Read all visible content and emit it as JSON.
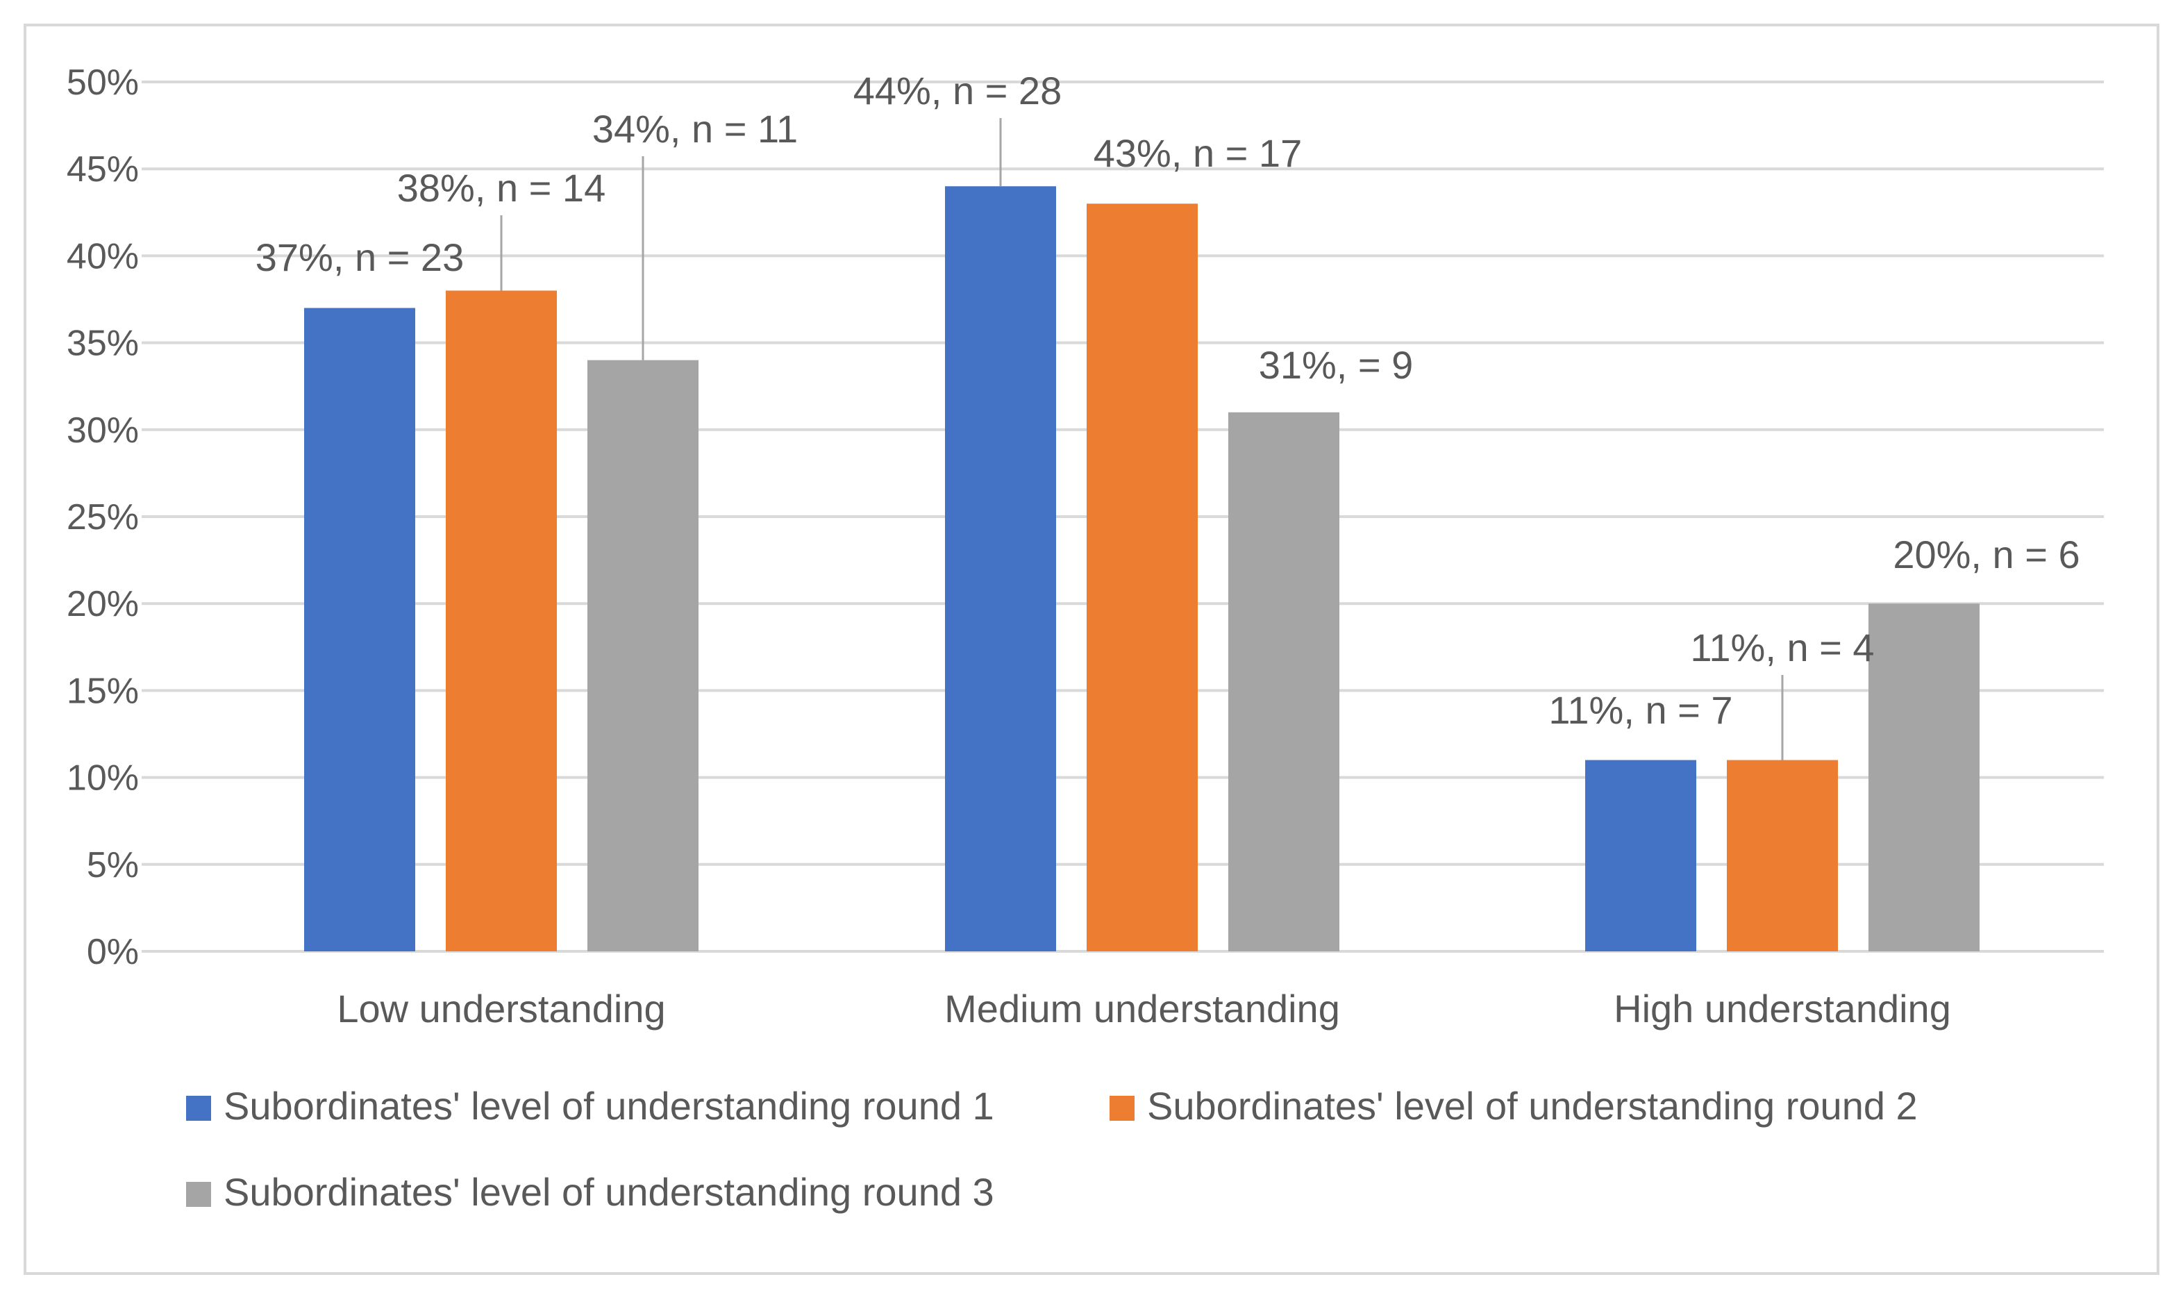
{
  "chart_data": {
    "type": "bar",
    "title": "",
    "xlabel": "",
    "ylabel": "",
    "ylim": [
      0,
      0.5
    ],
    "y_ticks": [
      "0%",
      "5%",
      "10%",
      "15%",
      "20%",
      "25%",
      "30%",
      "35%",
      "40%",
      "45%",
      "50%"
    ],
    "grid": true,
    "legend_position": "bottom",
    "categories": [
      "Low understanding",
      "Medium understanding",
      "High understanding"
    ],
    "series": [
      {
        "name": "Subordinates' level of understanding round 1",
        "color": "#4472C4",
        "values": [
          0.37,
          0.44,
          0.11
        ],
        "labels": [
          "37%, n = 23",
          "44%, n = 28",
          "11%, n = 7"
        ]
      },
      {
        "name": "Subordinates' level of understanding round 2",
        "color": "#ED7D31",
        "values": [
          0.38,
          0.43,
          0.11
        ],
        "labels": [
          "38%, n = 14",
          "43%, n = 17",
          "11%, n = 4"
        ]
      },
      {
        "name": "Subordinates' level of understanding round 3",
        "color": "#A5A5A5",
        "values": [
          0.34,
          0.31,
          0.2
        ],
        "labels": [
          "34%, n = 11",
          "31%, = 9",
          "20%, n = 6"
        ]
      }
    ]
  }
}
